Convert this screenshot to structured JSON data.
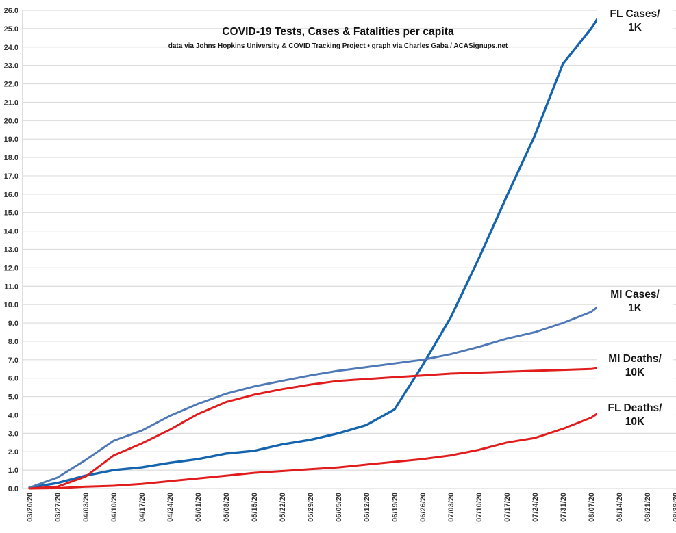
{
  "chart": {
    "title": "COVID-19 Tests, Cases & Fatalities per capita",
    "subtitle": "data via Johns Hopkins University & COVID Tracking Project • graph via Charles Gaba / ACASignups.net"
  },
  "chart_data": {
    "type": "line",
    "title": "COVID-19 Tests, Cases & Fatalities per capita",
    "subtitle": "data via Johns Hopkins University & COVID Tracking Project • graph via Charles Gaba / ACASignups.net",
    "xlabel": "",
    "ylabel": "",
    "ylim": [
      0.0,
      26.0
    ],
    "y_tick_step": 1.0,
    "y_tick_format": "one-decimal",
    "grid": "horizontal-only",
    "legend_position": "end-of-line-labels-right",
    "categories": [
      "03/20/20",
      "03/27/20",
      "04/03/20",
      "04/10/20",
      "04/17/20",
      "04/24/20",
      "05/01/20",
      "05/08/20",
      "05/15/20",
      "05/22/20",
      "05/29/20",
      "06/05/20",
      "06/12/20",
      "06/19/20",
      "06/26/20",
      "07/03/20",
      "07/10/20",
      "07/17/20",
      "07/24/20",
      "07/31/20",
      "08/07/20",
      "08/14/20",
      "08/21/20",
      "08/28/20"
    ],
    "data_weeks_plotted": 21,
    "end_offset_weeks": 0.25,
    "series": [
      {
        "name": "FL Cases/1K",
        "label_line1": "FL Cases/",
        "label_line2": "1K",
        "color": "#1464ae",
        "values": [
          0.05,
          0.3,
          0.7,
          1.0,
          1.15,
          1.4,
          1.6,
          1.9,
          2.05,
          2.4,
          2.65,
          3.0,
          3.45,
          4.3,
          6.7,
          9.3,
          12.5,
          15.9,
          19.2,
          23.1,
          25.0
        ],
        "end_value": 25.6
      },
      {
        "name": "MI Cases/1K",
        "label_line1": "MI Cases/",
        "label_line2": "1K",
        "color": "#4e79b6",
        "values": [
          0.05,
          0.6,
          1.55,
          2.6,
          3.15,
          3.95,
          4.6,
          5.15,
          5.55,
          5.85,
          6.15,
          6.4,
          6.6,
          6.8,
          7.0,
          7.3,
          7.7,
          8.15,
          8.5,
          9.0,
          9.6
        ],
        "end_value": 9.9
      },
      {
        "name": "MI Deaths/10K",
        "label_line1": "MI Deaths/",
        "label_line2": "10K",
        "color": "#e11c1c",
        "values": [
          0.0,
          0.1,
          0.65,
          1.8,
          2.45,
          3.2,
          4.05,
          4.7,
          5.1,
          5.4,
          5.65,
          5.85,
          5.95,
          6.05,
          6.15,
          6.25,
          6.3,
          6.35,
          6.4,
          6.45,
          6.5
        ],
        "end_value": 6.55
      },
      {
        "name": "FL Deaths/10K",
        "label_line1": "FL Deaths/",
        "label_line2": "10K",
        "color": "#e11c1c",
        "values": [
          0.0,
          0.02,
          0.1,
          0.15,
          0.25,
          0.4,
          0.55,
          0.7,
          0.85,
          0.95,
          1.05,
          1.15,
          1.3,
          1.45,
          1.6,
          1.8,
          2.1,
          2.5,
          2.75,
          3.25,
          3.85
        ],
        "end_value": 4.1
      }
    ]
  },
  "colors": {
    "background": "#ffffff",
    "gridline": "#dcdcdc",
    "axis_line": "#c8c8c8",
    "tick_text": "#333333",
    "title_text": "#111111"
  }
}
